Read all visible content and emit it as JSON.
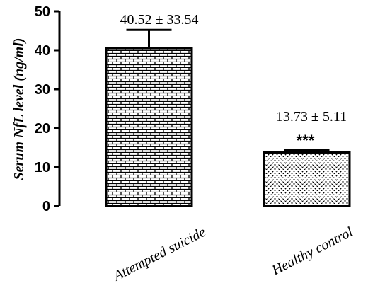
{
  "chart_data": {
    "type": "bar",
    "title": "",
    "xlabel": "",
    "ylabel": "Serum NfL level (ng/ml)",
    "ylim": [
      0,
      50
    ],
    "yticks": [
      0,
      10,
      20,
      30,
      40,
      50
    ],
    "categories": [
      "Attempted suicide",
      "Healthy control"
    ],
    "values": [
      40.52,
      13.73
    ],
    "errors": [
      4.7,
      0.6
    ],
    "data_labels": [
      "40.52 ± 33.54",
      "13.73 ± 5.11"
    ],
    "annotations": [
      "",
      "***"
    ],
    "patterns": [
      "brick",
      "dots"
    ],
    "grid": false
  }
}
